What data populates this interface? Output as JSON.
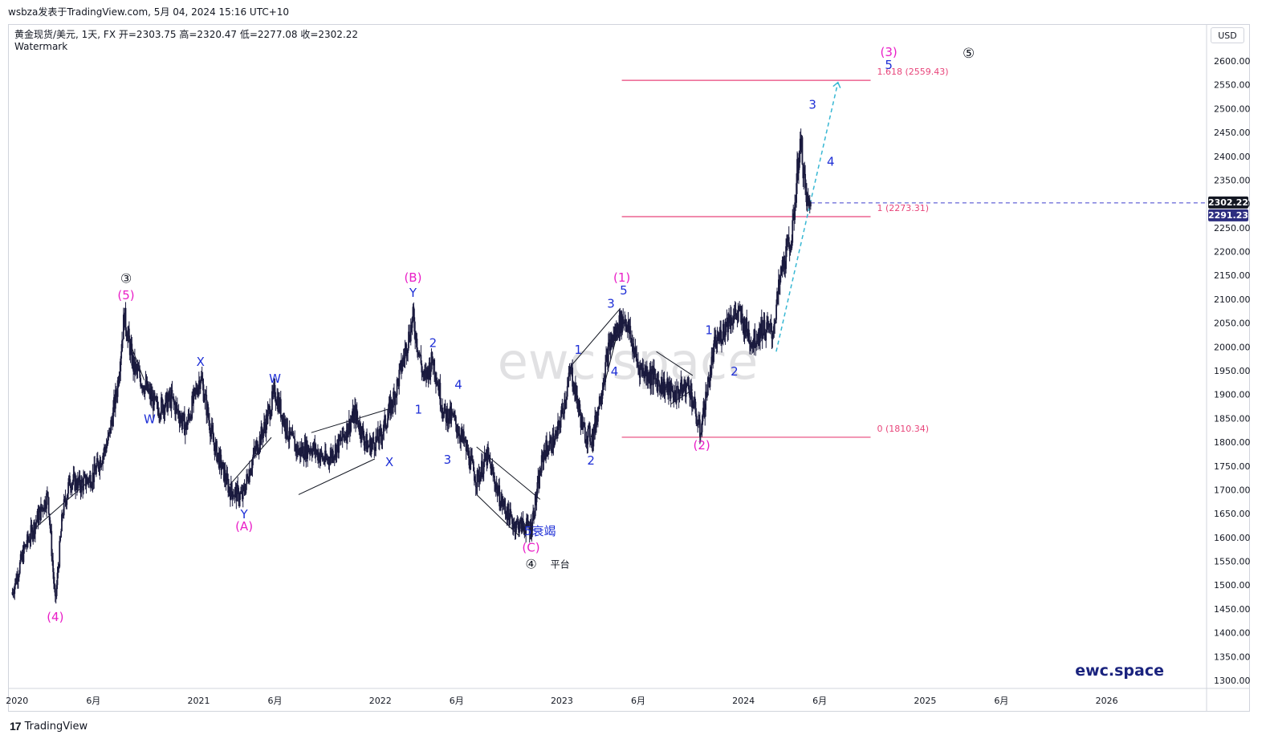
{
  "header": {
    "title": "wsbza发表于TradingView.com,  5月 04, 2024 15:16 UTC+10",
    "symbol_line": "黄金现货/美元, 1天, FX  开=2303.75  高=2320.47  低=2277.08  收=2302.22",
    "watermark_label": "Watermark"
  },
  "footer": {
    "logo_text": "TradingView",
    "logo_icon": "tradingview-logo-icon"
  },
  "currency": "USD",
  "watermark_text": "ewc.space",
  "brand_text": "ewc.space",
  "colors": {
    "candles": "#1a1a3e",
    "magenta": "#e91ec7",
    "blue": "#1e2fd6",
    "fib_line": "#e8447a",
    "projection": "#37b7d3",
    "current_price_line": "#3d3dcc",
    "price_badge_bg": "#131722",
    "price_badge2_bg": "#2d2e80"
  },
  "chart_data": {
    "type": "candlestick",
    "symbol": "黄金现货/美元",
    "timeframe": "1天",
    "ohlc": {
      "open": 2303.75,
      "high": 2320.47,
      "low": 2277.08,
      "close": 2302.22
    },
    "y_axis": {
      "ticks": [
        "2600.00",
        "2550.00",
        "2500.00",
        "2450.00",
        "2400.00",
        "2350.00",
        "2300.00",
        "2250.00",
        "2200.00",
        "2150.00",
        "2100.00",
        "2050.00",
        "2000.00",
        "1950.00",
        "1900.00",
        "1850.00",
        "1800.00",
        "1750.00",
        "1700.00",
        "1650.00",
        "1600.00",
        "1550.00",
        "1500.00",
        "1450.00",
        "1400.00",
        "1350.00",
        "1300.00"
      ],
      "range": [
        1280,
        2640
      ]
    },
    "x_axis": {
      "ticks": [
        {
          "label": "2020",
          "t": 2020.0
        },
        {
          "label": "6月",
          "t": 2020.42
        },
        {
          "label": "2021",
          "t": 2021.0
        },
        {
          "label": "6月",
          "t": 2021.42
        },
        {
          "label": "2022",
          "t": 2022.0
        },
        {
          "label": "6月",
          "t": 2022.42
        },
        {
          "label": "2023",
          "t": 2023.0
        },
        {
          "label": "6月",
          "t": 2023.42
        },
        {
          "label": "2024",
          "t": 2024.0
        },
        {
          "label": "6月",
          "t": 2024.42
        },
        {
          "label": "2025",
          "t": 2025.0
        },
        {
          "label": "6月",
          "t": 2025.42
        },
        {
          "label": "2026",
          "t": 2026.0
        }
      ]
    },
    "price_path": [
      [
        2019.97,
        1480
      ],
      [
        2020.04,
        1575
      ],
      [
        2020.1,
        1630
      ],
      [
        2020.17,
        1690
      ],
      [
        2020.21,
        1460
      ],
      [
        2020.25,
        1650
      ],
      [
        2020.29,
        1720
      ],
      [
        2020.35,
        1710
      ],
      [
        2020.42,
        1730
      ],
      [
        2020.5,
        1800
      ],
      [
        2020.55,
        1910
      ],
      [
        2020.59,
        2065
      ],
      [
        2020.64,
        1960
      ],
      [
        2020.7,
        1920
      ],
      [
        2020.77,
        1870
      ],
      [
        2020.85,
        1890
      ],
      [
        2020.93,
        1830
      ],
      [
        2020.98,
        1900
      ],
      [
        2021.01,
        1940
      ],
      [
        2021.08,
        1800
      ],
      [
        2021.17,
        1700
      ],
      [
        2021.24,
        1685
      ],
      [
        2021.3,
        1770
      ],
      [
        2021.36,
        1830
      ],
      [
        2021.42,
        1905
      ],
      [
        2021.5,
        1810
      ],
      [
        2021.55,
        1780
      ],
      [
        2021.62,
        1790
      ],
      [
        2021.7,
        1760
      ],
      [
        2021.78,
        1800
      ],
      [
        2021.86,
        1860
      ],
      [
        2021.93,
        1790
      ],
      [
        2022.0,
        1810
      ],
      [
        2022.08,
        1900
      ],
      [
        2022.18,
        2060
      ],
      [
        2022.24,
        1930
      ],
      [
        2022.29,
        1975
      ],
      [
        2022.35,
        1860
      ],
      [
        2022.4,
        1850
      ],
      [
        2022.46,
        1800
      ],
      [
        2022.53,
        1720
      ],
      [
        2022.59,
        1770
      ],
      [
        2022.66,
        1680
      ],
      [
        2022.73,
        1630
      ],
      [
        2022.83,
        1620
      ],
      [
        2022.9,
        1780
      ],
      [
        2022.97,
        1810
      ],
      [
        2023.05,
        1950
      ],
      [
        2023.12,
        1820
      ],
      [
        2023.17,
        1810
      ],
      [
        2023.26,
        2000
      ],
      [
        2023.32,
        2050
      ],
      [
        2023.35,
        2060
      ],
      [
        2023.42,
        1960
      ],
      [
        2023.52,
        1930
      ],
      [
        2023.62,
        1900
      ],
      [
        2023.7,
        1920
      ],
      [
        2023.76,
        1820
      ],
      [
        2023.84,
        2000
      ],
      [
        2023.92,
        2060
      ],
      [
        2023.97,
        2070
      ],
      [
        2024.05,
        2010
      ],
      [
        2024.1,
        2040
      ],
      [
        2024.16,
        2030
      ],
      [
        2024.21,
        2160
      ],
      [
        2024.27,
        2240
      ],
      [
        2024.3,
        2390
      ],
      [
        2024.32,
        2420
      ],
      [
        2024.34,
        2325
      ],
      [
        2024.36,
        2290
      ],
      [
        2024.37,
        2302
      ]
    ],
    "fib_levels": [
      {
        "label": "1.618 (2559.43)",
        "value": 2559.43,
        "t_start": 2023.33,
        "t_end": 2024.7
      },
      {
        "label": "1 (2273.31)",
        "value": 2273.31,
        "t_start": 2023.33,
        "t_end": 2024.7
      },
      {
        "label": "0 (1810.34)",
        "value": 1810.34,
        "t_start": 2023.33,
        "t_end": 2024.7
      }
    ],
    "current_price": {
      "value": 2302.22,
      "label": "2302.22"
    },
    "second_price": {
      "value": 2291.23,
      "label": "2291.23"
    },
    "projection": [
      [
        2024.18,
        1990
      ],
      [
        2024.52,
        2555
      ]
    ],
    "wave_labels": [
      {
        "text": "③",
        "t": 2020.6,
        "y": 2134,
        "color": "#131722",
        "size": 16
      },
      {
        "text": "(5)",
        "t": 2020.6,
        "y": 2100,
        "color": "#e91ec7",
        "size": 15
      },
      {
        "text": "(4)",
        "t": 2020.21,
        "y": 1425,
        "color": "#e91ec7",
        "size": 15
      },
      {
        "text": "X",
        "t": 2021.01,
        "y": 1960,
        "color": "#1e2fd6",
        "size": 15
      },
      {
        "text": "W",
        "t": 2020.73,
        "y": 1840,
        "color": "#1e2fd6",
        "size": 15
      },
      {
        "text": "W",
        "t": 2021.42,
        "y": 1925,
        "color": "#1e2fd6",
        "size": 15
      },
      {
        "text": "Y",
        "t": 2021.25,
        "y": 1640,
        "color": "#1e2fd6",
        "size": 15
      },
      {
        "text": "(A)",
        "t": 2021.25,
        "y": 1615,
        "color": "#e91ec7",
        "size": 15
      },
      {
        "text": "X",
        "t": 2022.05,
        "y": 1750,
        "color": "#1e2fd6",
        "size": 15
      },
      {
        "text": "(B)",
        "t": 2022.18,
        "y": 2137,
        "color": "#e91ec7",
        "size": 15
      },
      {
        "text": "Y",
        "t": 2022.18,
        "y": 2105,
        "color": "#1e2fd6",
        "size": 15
      },
      {
        "text": "1",
        "t": 2022.21,
        "y": 1860,
        "color": "#1e2fd6",
        "size": 15
      },
      {
        "text": "2",
        "t": 2022.29,
        "y": 2000,
        "color": "#1e2fd6",
        "size": 15
      },
      {
        "text": "3",
        "t": 2022.37,
        "y": 1755,
        "color": "#1e2fd6",
        "size": 15
      },
      {
        "text": "4",
        "t": 2022.43,
        "y": 1912,
        "color": "#1e2fd6",
        "size": 15
      },
      {
        "text": "5衰竭",
        "t": 2022.88,
        "y": 1605,
        "color": "#1e2fd6",
        "size": 15
      },
      {
        "text": "(C)",
        "t": 2022.83,
        "y": 1570,
        "color": "#e91ec7",
        "size": 15
      },
      {
        "text": "④",
        "t": 2022.83,
        "y": 1535,
        "color": "#131722",
        "size": 16
      },
      {
        "text": "平台",
        "t": 2022.99,
        "y": 1537,
        "color": "#131722",
        "size": 12
      },
      {
        "text": "1",
        "t": 2023.09,
        "y": 1985,
        "color": "#1e2fd6",
        "size": 15
      },
      {
        "text": "2",
        "t": 2023.16,
        "y": 1753,
        "color": "#1e2fd6",
        "size": 15
      },
      {
        "text": "3",
        "t": 2023.27,
        "y": 2082,
        "color": "#1e2fd6",
        "size": 15
      },
      {
        "text": "4",
        "t": 2023.29,
        "y": 1940,
        "color": "#1e2fd6",
        "size": 15
      },
      {
        "text": "5",
        "t": 2023.34,
        "y": 2110,
        "color": "#1e2fd6",
        "size": 15
      },
      {
        "text": "(1)",
        "t": 2023.33,
        "y": 2137,
        "color": "#e91ec7",
        "size": 15
      },
      {
        "text": "(2)",
        "t": 2023.77,
        "y": 1785,
        "color": "#e91ec7",
        "size": 15
      },
      {
        "text": "1",
        "t": 2023.81,
        "y": 2027,
        "color": "#1e2fd6",
        "size": 15
      },
      {
        "text": "2",
        "t": 2023.95,
        "y": 1940,
        "color": "#1e2fd6",
        "size": 15
      },
      {
        "text": "3",
        "t": 2024.38,
        "y": 2500,
        "color": "#1e2fd6",
        "size": 15
      },
      {
        "text": "4",
        "t": 2024.48,
        "y": 2380,
        "color": "#1e2fd6",
        "size": 15
      },
      {
        "text": "5",
        "t": 2024.8,
        "y": 2583,
        "color": "#1e2fd6",
        "size": 15
      },
      {
        "text": "(3)",
        "t": 2024.8,
        "y": 2610,
        "color": "#e91ec7",
        "size": 15
      },
      {
        "text": "⑤",
        "t": 2025.24,
        "y": 2607,
        "color": "#131722",
        "size": 17
      }
    ],
    "trend_lines": [
      [
        [
          2020.6,
          2030
        ],
        [
          2020.7,
          1930
        ]
      ],
      [
        [
          2020.1,
          1620
        ],
        [
          2020.4,
          1720
        ]
      ],
      [
        [
          2021.17,
          1710
        ],
        [
          2021.4,
          1810
        ]
      ],
      [
        [
          2021.62,
          1820
        ],
        [
          2022.05,
          1870
        ]
      ],
      [
        [
          2021.55,
          1690
        ],
        [
          2021.97,
          1765
        ]
      ],
      [
        [
          2022.53,
          1790
        ],
        [
          2022.88,
          1680
        ]
      ],
      [
        [
          2022.53,
          1690
        ],
        [
          2022.76,
          1605
        ]
      ],
      [
        [
          2023.05,
          1960
        ],
        [
          2023.32,
          2080
        ]
      ],
      [
        [
          2023.16,
          1810
        ],
        [
          2023.32,
          2050
        ]
      ],
      [
        [
          2023.52,
          1990
        ],
        [
          2023.72,
          1940
        ]
      ],
      [
        [
          2023.6,
          1880
        ],
        [
          2023.72,
          1910
        ]
      ]
    ]
  }
}
